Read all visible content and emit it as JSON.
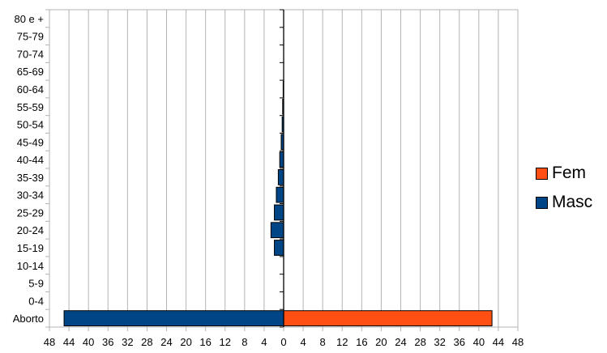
{
  "chart_data": {
    "type": "bar",
    "orientation": "horizontal",
    "layout": "population-pyramid",
    "categories": [
      "80 e +",
      "75-79",
      "70-74",
      "65-69",
      "60-64",
      "55-59",
      "50-54",
      "45-49",
      "40-44",
      "35-39",
      "30-34",
      "25-29",
      "20-24",
      "15-19",
      "10-14",
      "5-9",
      "0-4",
      "Aborto"
    ],
    "series": [
      {
        "name": "Fem",
        "color": "#ff4f12",
        "side": "right",
        "values": [
          0,
          0,
          0,
          0,
          0,
          0,
          0,
          0,
          0,
          0,
          0,
          0,
          0,
          0,
          0,
          0,
          0,
          42.7
        ]
      },
      {
        "name": "Masc",
        "color": "#004586",
        "side": "left",
        "values": [
          0,
          0,
          0,
          0,
          0.1,
          0.2,
          0.3,
          0.5,
          0.8,
          1.1,
          1.5,
          1.9,
          2.6,
          1.9,
          0,
          0,
          0,
          45.0
        ]
      }
    ],
    "x_ticks": [
      "48",
      "44",
      "40",
      "36",
      "32",
      "28",
      "24",
      "20",
      "16",
      "12",
      "8",
      "4",
      "0",
      "4",
      "8",
      "12",
      "16",
      "20",
      "24",
      "28",
      "32",
      "36",
      "40",
      "44",
      "48"
    ],
    "xlim": [
      -48,
      48
    ],
    "grid": true,
    "legend_position": "right",
    "title": "",
    "xlabel": "",
    "ylabel": ""
  },
  "legend": {
    "fem_label": "Fem",
    "masc_label": "Masc",
    "fem_color": "#ff4f12",
    "masc_color": "#004586"
  }
}
